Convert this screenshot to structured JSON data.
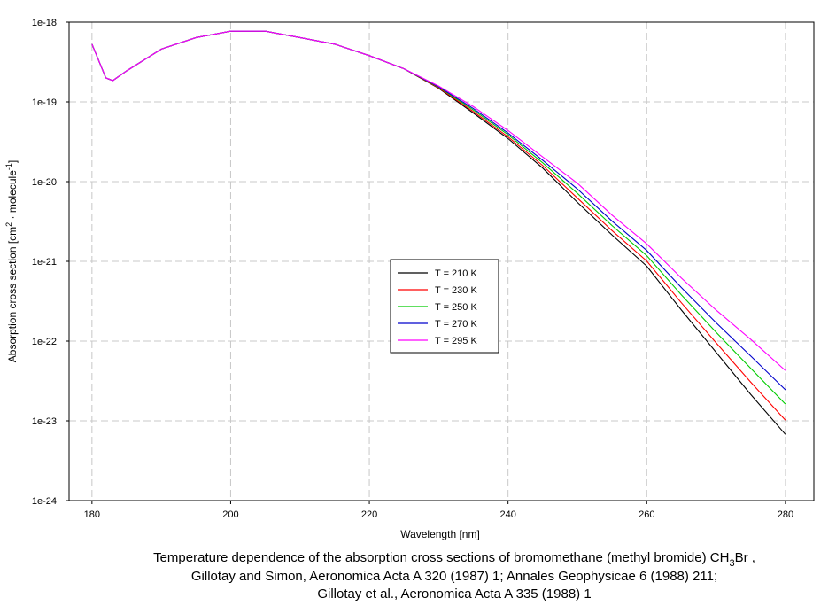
{
  "chart_data": {
    "type": "line",
    "log_y": true,
    "grid": true,
    "legend_position": "center",
    "xlabel": "Wavelength [nm]",
    "ylabel_parts": [
      "Absorption cross section [cm",
      "2",
      " · molecule",
      "-1",
      "]"
    ],
    "caption_lines": [
      [
        "Temperature dependence of the absorption cross sections of bromomethane (methyl bromide) CH",
        "3",
        "Br ,"
      ],
      [
        "Gillotay and Simon, Aeronomica Acta A 320 (1987) 1; Annales Geophysicae 6 (1988) 211;"
      ],
      [
        "Gillotay et al., Aeronomica Acta A 335 (1988) 1"
      ]
    ],
    "xlim": [
      176.7,
      284.1
    ],
    "xticks": [
      180,
      200,
      220,
      240,
      260,
      280
    ],
    "ylim": [
      1e-24,
      1e-18
    ],
    "yticks": [
      {
        "value": 1e-24,
        "label": "1e-24"
      },
      {
        "value": 1e-23,
        "label": "1e-23"
      },
      {
        "value": 1e-22,
        "label": "1e-22"
      },
      {
        "value": 1e-21,
        "label": "1e-21"
      },
      {
        "value": 1e-20,
        "label": "1e-20"
      },
      {
        "value": 1e-19,
        "label": "1e-19"
      },
      {
        "value": 1e-18,
        "label": "1e-18"
      }
    ],
    "x": [
      180,
      182,
      183,
      185,
      190,
      195,
      200,
      205,
      210,
      215,
      220,
      225,
      230,
      235,
      240,
      245,
      250,
      255,
      260,
      265,
      270,
      275,
      280
    ],
    "series": [
      {
        "name": "T = 210 K",
        "color": "#000000",
        "values": [
          5.3e-19,
          2e-19,
          1.85e-19,
          2.45e-19,
          4.6e-19,
          6.4e-19,
          7.7e-19,
          7.7e-19,
          6.4e-19,
          5.3e-19,
          3.8e-19,
          2.6e-19,
          1.48e-19,
          7.24e-20,
          3.47e-20,
          1.48e-20,
          5.5e-21,
          2.14e-21,
          8.71e-22,
          2.45e-22,
          7.24e-23,
          2.14e-23,
          6.76e-24
        ]
      },
      {
        "name": "T = 230 K",
        "color": "#ff0000",
        "values": [
          5.3e-19,
          2e-19,
          1.85e-19,
          2.45e-19,
          4.6e-19,
          6.4e-19,
          7.7e-19,
          7.7e-19,
          6.4e-19,
          5.3e-19,
          3.8e-19,
          2.6e-19,
          1.5e-19,
          7.55e-20,
          3.65e-20,
          1.59e-20,
          6.22e-21,
          2.43e-21,
          1.01e-21,
          3.02e-22,
          9.53e-23,
          3.05e-23,
          1.02e-23
        ]
      },
      {
        "name": "T = 250 K",
        "color": "#00cc00",
        "values": [
          5.3e-19,
          2e-19,
          1.85e-19,
          2.45e-19,
          4.6e-19,
          6.4e-19,
          7.7e-19,
          7.7e-19,
          6.4e-19,
          5.3e-19,
          3.8e-19,
          2.6e-19,
          1.53e-19,
          7.91e-20,
          3.87e-20,
          1.72e-20,
          7.14e-21,
          2.81e-21,
          1.18e-21,
          3.8e-22,
          1.29e-22,
          4.55e-23,
          1.62e-23
        ]
      },
      {
        "name": "T = 270 K",
        "color": "#0000cc",
        "values": [
          5.3e-19,
          2e-19,
          1.85e-19,
          2.45e-19,
          4.6e-19,
          6.4e-19,
          7.7e-19,
          7.7e-19,
          6.4e-19,
          5.3e-19,
          3.8e-19,
          2.6e-19,
          1.55e-19,
          8.24e-20,
          4.07e-20,
          1.85e-20,
          8.09e-21,
          3.2e-21,
          1.37e-21,
          4.68e-22,
          1.7e-22,
          6.5e-23,
          2.45e-23
        ]
      },
      {
        "name": "T = 295 K",
        "color": "#ff00ff",
        "values": [
          5.3e-19,
          2e-19,
          1.85e-19,
          2.45e-19,
          4.6e-19,
          6.4e-19,
          7.7e-19,
          7.7e-19,
          6.4e-19,
          5.3e-19,
          3.8e-19,
          2.6e-19,
          1.58e-19,
          8.71e-20,
          4.37e-20,
          2.04e-20,
          9.55e-21,
          3.8e-21,
          1.66e-21,
          6.17e-22,
          2.45e-22,
          1.05e-22,
          4.27e-23
        ]
      }
    ]
  }
}
